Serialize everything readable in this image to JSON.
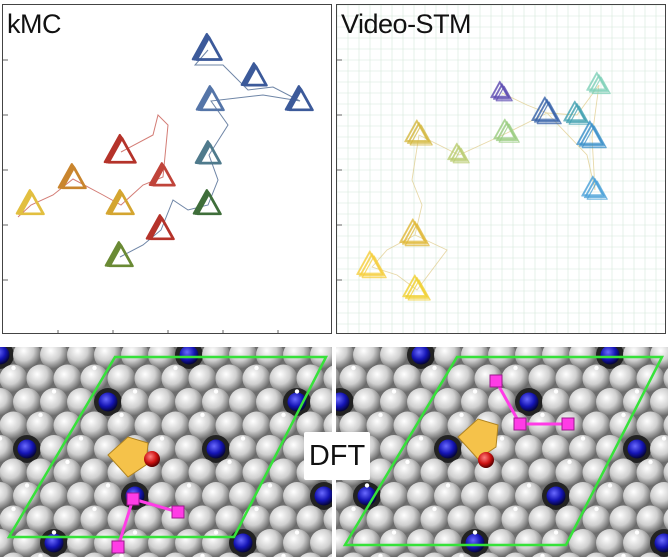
{
  "panels": {
    "kmc": {
      "title": "kMC"
    },
    "video_stm": {
      "title": "Video-STM"
    }
  },
  "dft": {
    "label": "DFT"
  },
  "colors": {
    "frame": "#444444",
    "grid": "#d6e7d9",
    "silver_atom": "#cfcfcf",
    "blue_atom": "#1414b4",
    "red_atom": "#cc1111",
    "arrow": "#f5c24a",
    "magenta": "#ff3ce6",
    "cell": "#36e23a"
  },
  "kmc_trimers": [
    {
      "color": "#3c5a9a"
    },
    {
      "color": "#3c5a9a"
    },
    {
      "color": "#5575a8"
    },
    {
      "color": "#3c5a9a"
    },
    {
      "color": "#4f7a8c"
    },
    {
      "color": "#3f6e3a"
    },
    {
      "color": "#b5332a"
    },
    {
      "color": "#c0443a"
    },
    {
      "color": "#b5332a"
    },
    {
      "color": "#c9852e"
    },
    {
      "color": "#d4a530"
    },
    {
      "color": "#e2bf40"
    },
    {
      "color": "#6a8a34"
    }
  ],
  "stm_trimers": [
    {
      "color": "#5b4ab0"
    },
    {
      "color": "#3460a8"
    },
    {
      "color": "#7fd0b8"
    },
    {
      "color": "#40a0b0"
    },
    {
      "color": "#3a8fc8"
    },
    {
      "color": "#9acc80"
    },
    {
      "color": "#b9cc70"
    },
    {
      "color": "#d4b840"
    },
    {
      "color": "#e0b838"
    },
    {
      "color": "#f0d030"
    },
    {
      "color": "#f5cd3c"
    },
    {
      "color": "#4aa0d8"
    }
  ]
}
